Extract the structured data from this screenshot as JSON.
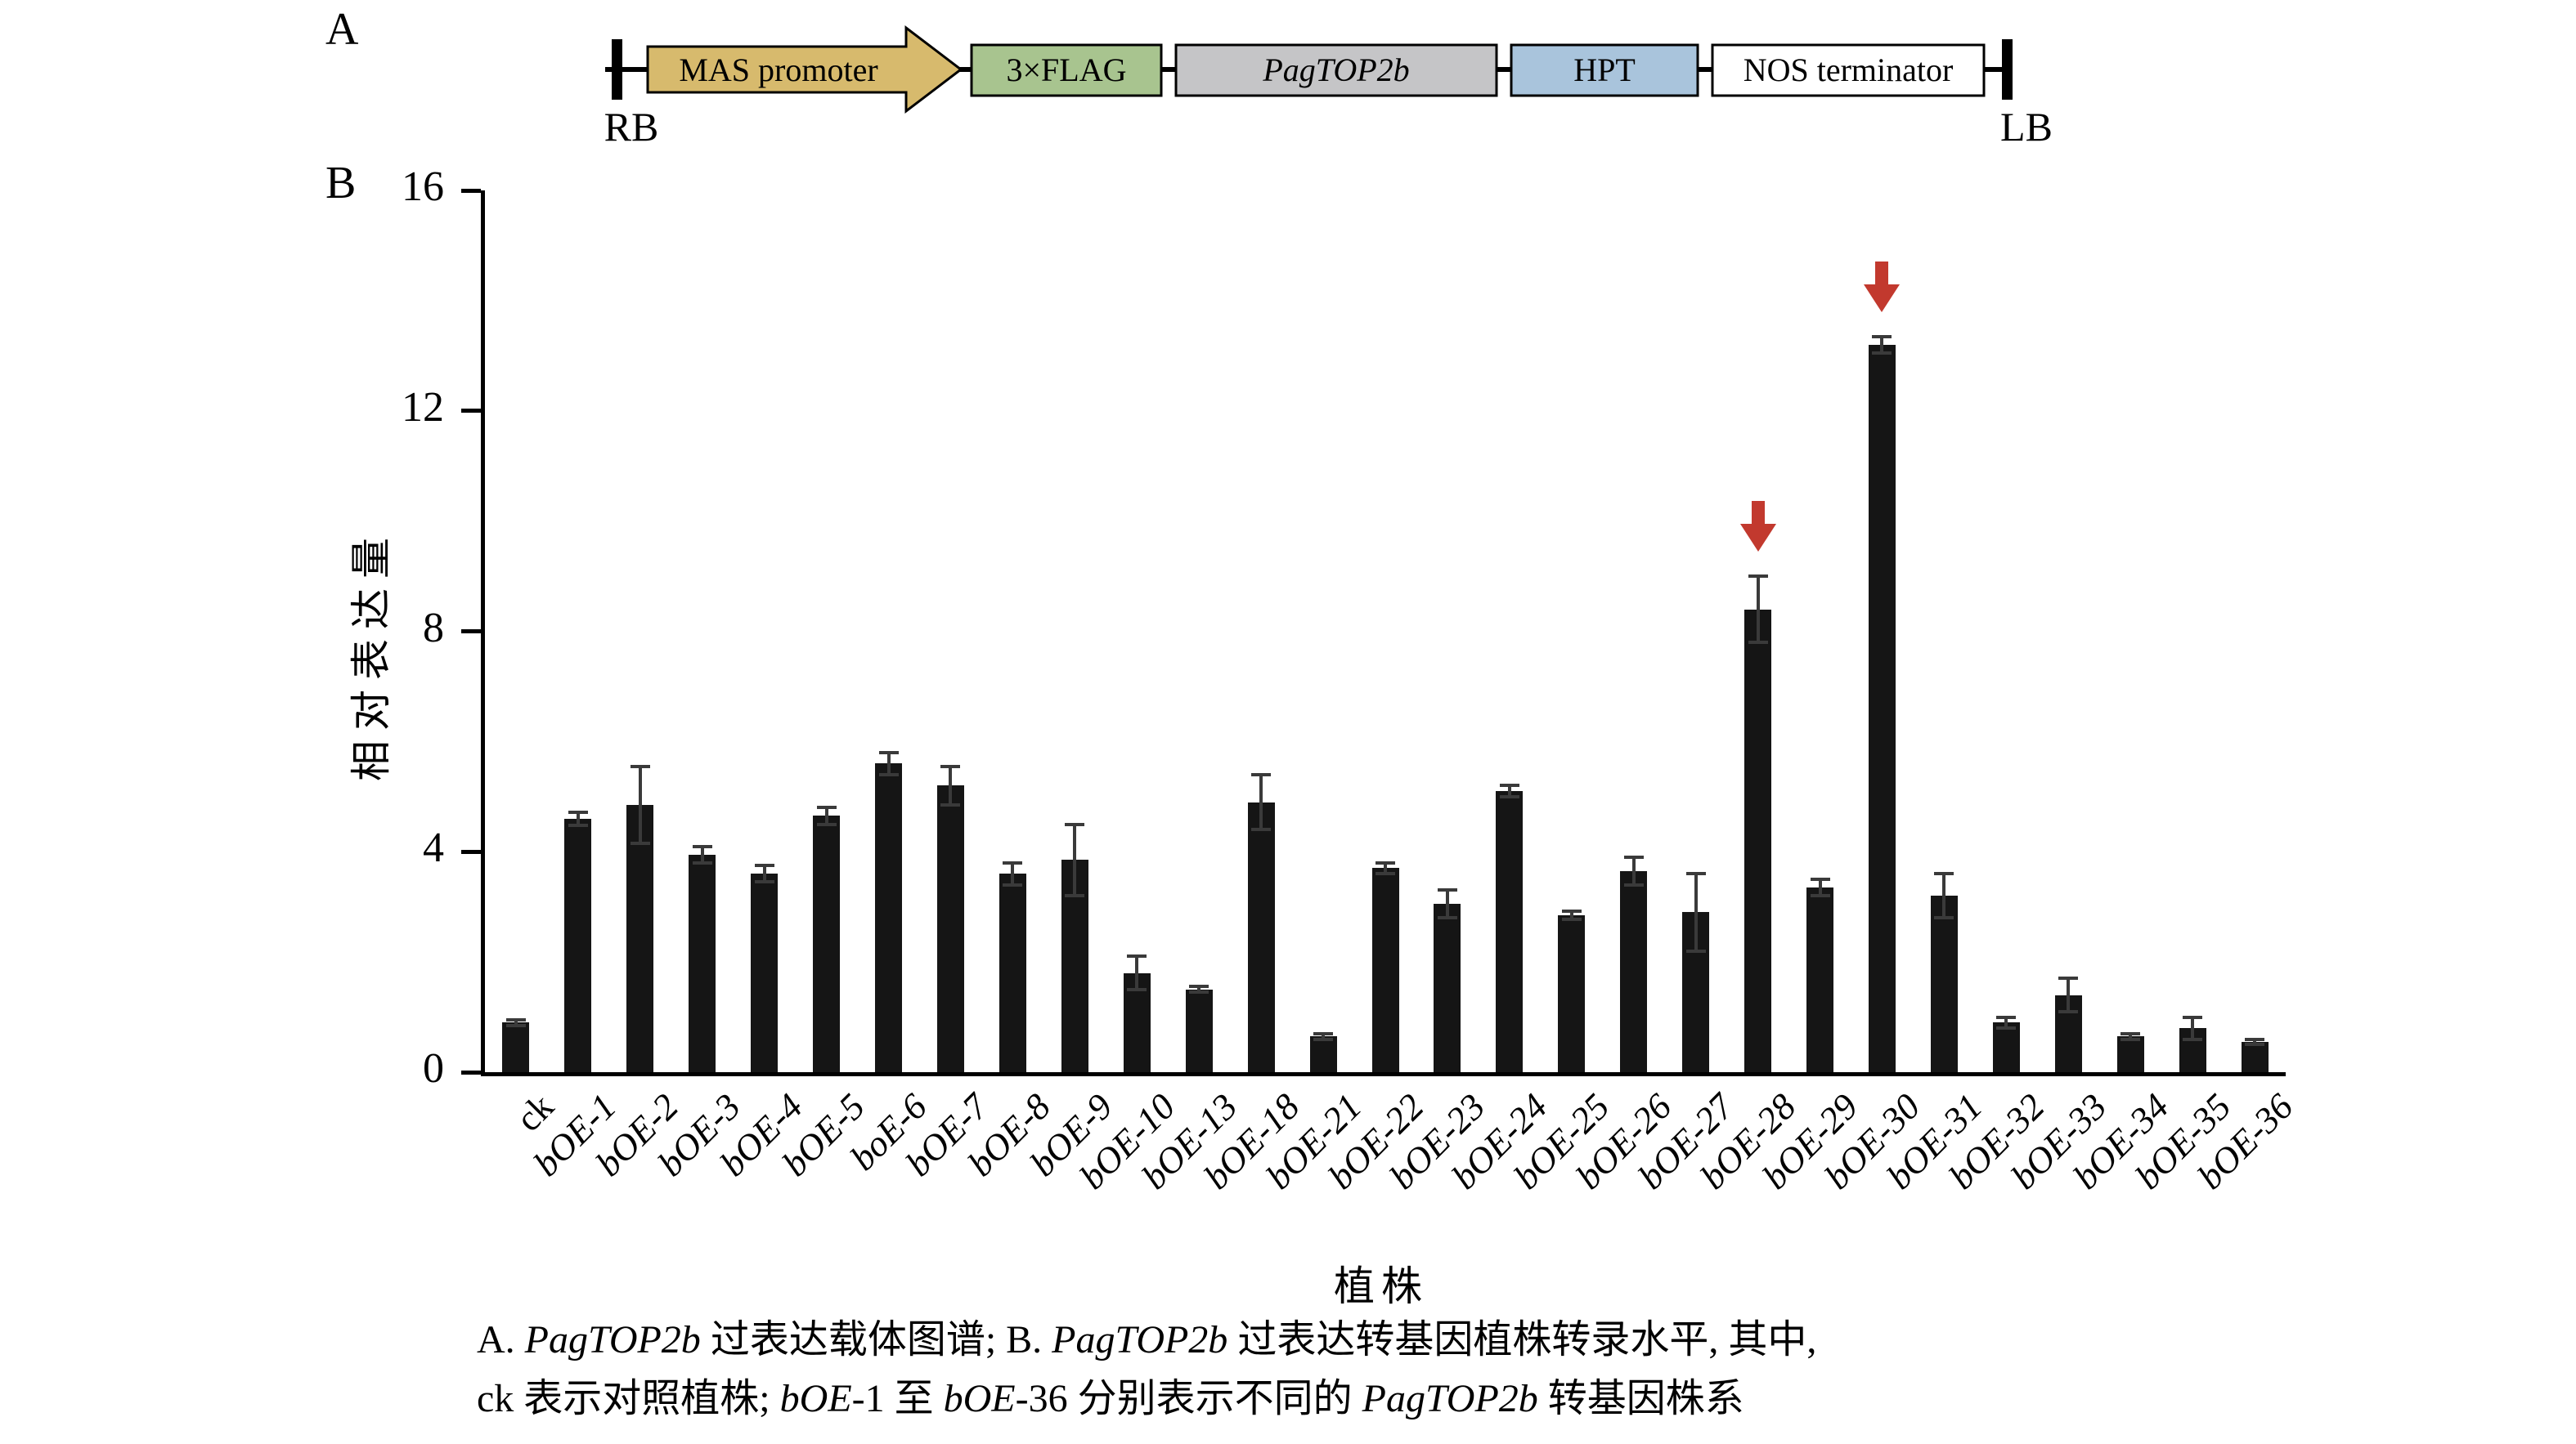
{
  "panel_a": {
    "label": "A",
    "rb_label": "RB",
    "lb_label": "LB",
    "elements": [
      {
        "label": "MAS promoter",
        "shape": "arrow",
        "color": "#d7ba6d",
        "italic": false
      },
      {
        "label": "3×FLAG",
        "shape": "box",
        "color": "#a8c48f",
        "italic": false
      },
      {
        "label": "PagTOP2b",
        "shape": "box",
        "color": "#c5c5c7",
        "italic": true
      },
      {
        "label": "HPT",
        "shape": "box",
        "color": "#a9c4dc",
        "italic": false
      },
      {
        "label": "NOS terminator",
        "shape": "box",
        "color": "#ffffff",
        "italic": false
      }
    ]
  },
  "panel_b": {
    "label": "B"
  },
  "chart_data": {
    "type": "bar",
    "title": "",
    "xlabel": "植株",
    "ylabel": "相对表达量",
    "ylim": [
      0,
      16
    ],
    "yticks": [
      0,
      4,
      8,
      12,
      16
    ],
    "grid": false,
    "legend": null,
    "bar_color": "#151515",
    "error_bar_color": "#3a3a3a",
    "arrow_color": "#c2392e",
    "categories": [
      "ck",
      "bOE-1",
      "bOE-2",
      "bOE-3",
      "bOE-4",
      "bOE-5",
      "boE-6",
      "bOE-7",
      "bOE-8",
      "bOE-9",
      "bOE-10",
      "bOE-13",
      "bOE-18",
      "bOE-21",
      "bOE-22",
      "bOE-23",
      "bOE-24",
      "bOE-25",
      "bOE-26",
      "bOE-27",
      "bOE-28",
      "bOE-29",
      "bOE-30",
      "bOE-31",
      "bOE-32",
      "bOE-33",
      "bOE-34",
      "bOE-35",
      "bOE-36"
    ],
    "values": [
      0.9,
      4.6,
      4.85,
      3.95,
      3.6,
      4.65,
      5.6,
      5.2,
      3.6,
      3.85,
      1.8,
      1.5,
      4.9,
      0.65,
      3.7,
      3.05,
      5.1,
      2.85,
      3.65,
      2.9,
      8.4,
      3.35,
      13.2,
      3.2,
      0.9,
      1.4,
      0.65,
      0.8,
      0.55
    ],
    "errors": [
      0.05,
      0.12,
      0.7,
      0.15,
      0.15,
      0.15,
      0.2,
      0.35,
      0.2,
      0.65,
      0.3,
      0.05,
      0.5,
      0.05,
      0.1,
      0.25,
      0.1,
      0.07,
      0.25,
      0.7,
      0.6,
      0.15,
      0.15,
      0.4,
      0.1,
      0.3,
      0.05,
      0.2,
      0.05
    ],
    "highlighted_categories": [
      "bOE-28",
      "bOE-30"
    ],
    "arrow_indices": [
      20,
      22
    ]
  },
  "caption": {
    "line1_segments": [
      {
        "text": "A. ",
        "italic": false
      },
      {
        "text": "PagTOP2b",
        "italic": true
      },
      {
        "text": " 过表达载体图谱; B. ",
        "italic": false
      },
      {
        "text": "PagTOP2b",
        "italic": true
      },
      {
        "text": " 过表达转基因植株转录水平, 其中,",
        "italic": false
      }
    ],
    "line2_segments": [
      {
        "text": "ck 表示对照植株; ",
        "italic": false
      },
      {
        "text": "bOE",
        "italic": true
      },
      {
        "text": "-1 至 ",
        "italic": false
      },
      {
        "text": "bOE",
        "italic": true
      },
      {
        "text": "-36 分别表示不同的 ",
        "italic": false
      },
      {
        "text": "PagTOP2b",
        "italic": true
      },
      {
        "text": " 转基因株系",
        "italic": false
      }
    ]
  }
}
